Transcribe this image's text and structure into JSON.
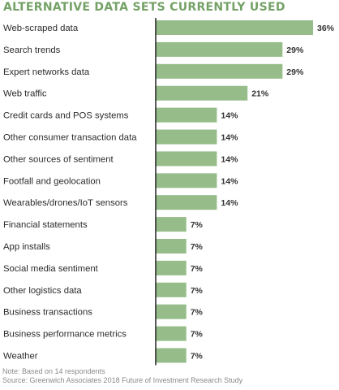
{
  "title": "ALTERNATIVE DATA SETS CURRENTLY USED",
  "colors": {
    "bar": "#96bd89",
    "title": "#74a266",
    "axis": "#222222",
    "label": "#2b2b2b",
    "value": "#333333",
    "note": "#8a8a8a"
  },
  "chart_data": {
    "type": "bar",
    "orientation": "horizontal",
    "categories": [
      "Web-scraped data",
      "Search trends",
      "Expert networks data",
      "Web traffic",
      "Credit cards and POS systems",
      "Other consumer transaction data",
      "Other sources of sentiment",
      "Footfall and geolocation",
      "Wearables/drones/IoT sensors",
      "Financial statements",
      "App installs",
      "Social media sentiment",
      "Other logistics data",
      "Business transactions",
      "Business performance metrics",
      "Weather"
    ],
    "values": [
      36,
      29,
      29,
      21,
      14,
      14,
      14,
      14,
      14,
      7,
      7,
      7,
      7,
      7,
      7,
      7
    ],
    "value_labels": [
      "36%",
      "29%",
      "29%",
      "21%",
      "14%",
      "14%",
      "14%",
      "14%",
      "14%",
      "7%",
      "7%",
      "7%",
      "7%",
      "7%",
      "7%",
      "7%"
    ],
    "xlim": [
      0,
      36
    ],
    "grid": false,
    "legend": "none"
  },
  "notes": {
    "note": "Note: Based on 14 respondents",
    "source": "Source: Greenwich Associates 2018 Future of Investment Research Study"
  }
}
